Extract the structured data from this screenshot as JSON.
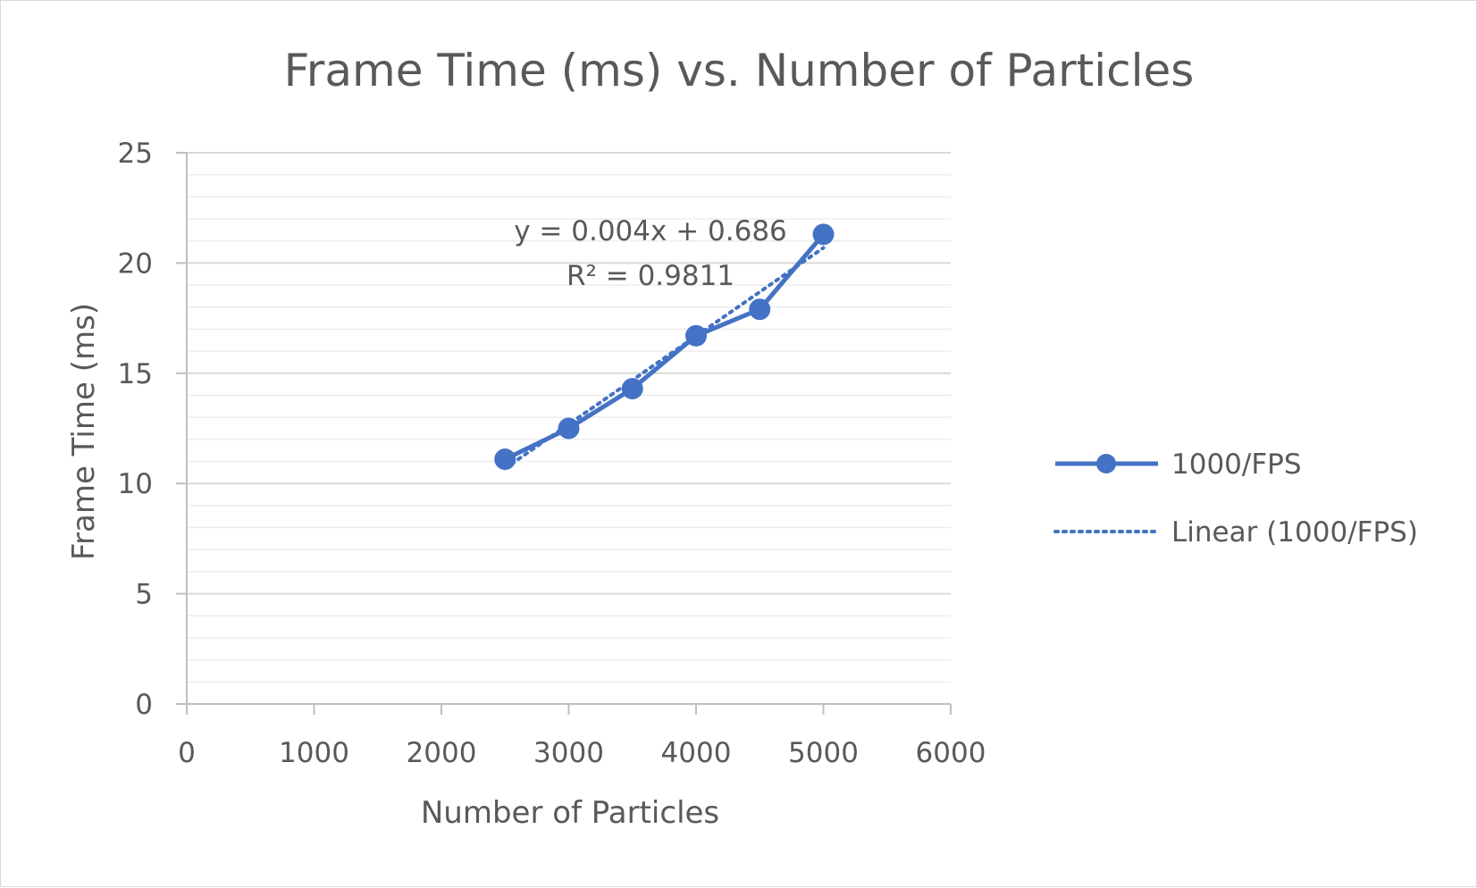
{
  "chart_data": {
    "type": "scatter",
    "title": "Frame Time (ms) vs. Number of Particles",
    "xlabel": "Number of Particles",
    "ylabel": "Frame Time (ms)",
    "xlim": [
      0,
      6000
    ],
    "ylim": [
      0,
      25
    ],
    "x_ticks": [
      "0",
      "1000",
      "2000",
      "3000",
      "4000",
      "5000",
      "6000"
    ],
    "y_ticks": [
      "0",
      "5",
      "10",
      "15",
      "20",
      "25"
    ],
    "grid": true,
    "legend_position": "right",
    "series": [
      {
        "name": "1000/FPS",
        "style": "line-with-markers",
        "color": "#4472c4",
        "x": [
          2500,
          3000,
          3500,
          4000,
          4500,
          5000
        ],
        "y": [
          11.1,
          12.5,
          14.3,
          16.7,
          17.9,
          21.3
        ]
      }
    ],
    "trendline": {
      "name": "Linear (1000/FPS)",
      "type": "linear",
      "style": "dotted",
      "color": "#4472c4",
      "slope": 0.004,
      "intercept": 0.686,
      "equation_label": "y = 0.004x + 0.686",
      "r2_label": "R² = 0.9811"
    }
  }
}
